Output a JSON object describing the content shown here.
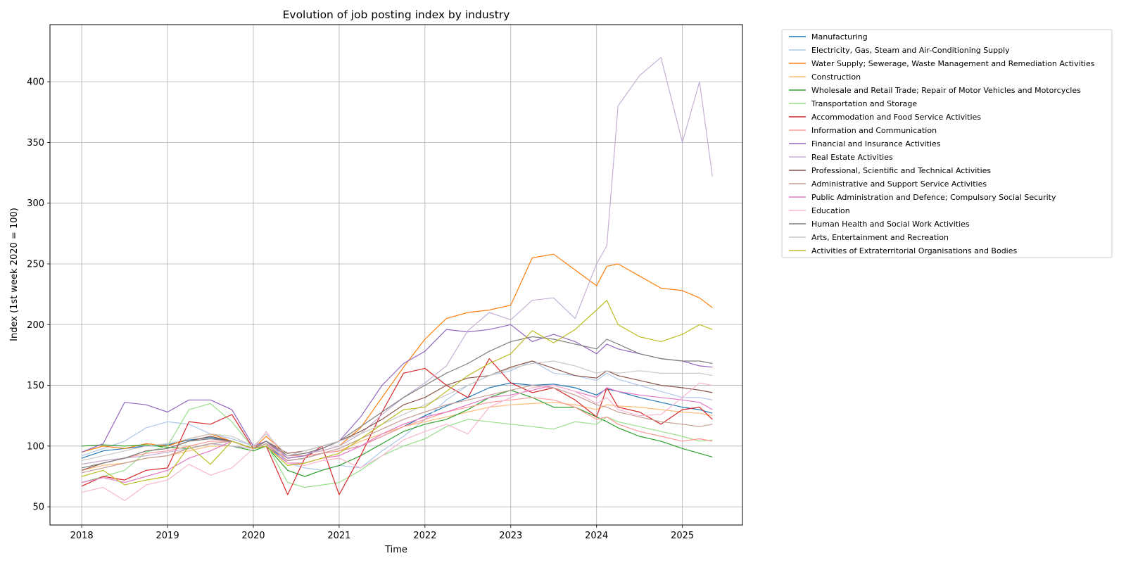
{
  "chart_data": {
    "type": "line",
    "title": "Evolution of job posting index by industry",
    "xlabel": "Time",
    "ylabel": "Index (1st week 2020 = 100)",
    "xlim": [
      2017.63,
      2025.7
    ],
    "ylim": [
      35,
      447
    ],
    "xticks": [
      2018,
      2019,
      2020,
      2021,
      2022,
      2023,
      2024,
      2025
    ],
    "yticks": [
      50,
      100,
      150,
      200,
      250,
      300,
      350,
      400
    ],
    "grid": true,
    "legend_position": "outside-right",
    "x": [
      2018.0,
      2018.25,
      2018.5,
      2018.75,
      2019.0,
      2019.25,
      2019.5,
      2019.75,
      2020.0,
      2020.15,
      2020.4,
      2020.6,
      2020.8,
      2021.0,
      2021.25,
      2021.5,
      2021.75,
      2022.0,
      2022.25,
      2022.5,
      2022.75,
      2023.0,
      2023.25,
      2023.5,
      2023.75,
      2024.0,
      2024.12,
      2024.25,
      2024.5,
      2024.75,
      2025.0,
      2025.2,
      2025.35
    ],
    "series": [
      {
        "name": "Manufacturing",
        "color": "#1f77b4",
        "values": [
          90,
          96,
          98,
          100,
          101,
          105,
          107,
          104,
          98,
          100,
          88,
          90,
          94,
          96,
          100,
          108,
          116,
          125,
          133,
          140,
          148,
          152,
          150,
          151,
          148,
          142,
          147,
          145,
          140,
          136,
          132,
          130,
          127
        ]
      },
      {
        "name": "Electricity, Gas, Steam and Air-Conditioning Supply",
        "color": "#aec7e8",
        "values": [
          92,
          98,
          104,
          115,
          120,
          118,
          110,
          106,
          100,
          104,
          86,
          82,
          80,
          84,
          82,
          96,
          108,
          122,
          138,
          150,
          158,
          162,
          170,
          160,
          158,
          154,
          160,
          155,
          150,
          145,
          140,
          140,
          138
        ]
      },
      {
        "name": "Water Supply; Sewerage, Waste Management and Remediation Activities",
        "color": "#ff7f0e",
        "values": [
          95,
          100,
          98,
          102,
          100,
          106,
          110,
          104,
          98,
          108,
          92,
          94,
          96,
          100,
          115,
          140,
          165,
          188,
          205,
          210,
          212,
          216,
          255,
          258,
          245,
          232,
          248,
          250,
          240,
          230,
          228,
          222,
          214
        ]
      },
      {
        "name": "Construction",
        "color": "#ffbb78",
        "values": [
          80,
          84,
          86,
          90,
          92,
          96,
          100,
          100,
          98,
          100,
          90,
          92,
          94,
          96,
          104,
          110,
          116,
          120,
          124,
          128,
          132,
          134,
          135,
          136,
          134,
          130,
          134,
          133,
          132,
          130,
          128,
          127,
          125
        ]
      },
      {
        "name": "Wholesale and Retail Trade; Repair of Motor Vehicles and Motorcycles",
        "color": "#2ca02c",
        "values": [
          100,
          101,
          100,
          101,
          99,
          98,
          102,
          100,
          96,
          100,
          80,
          75,
          80,
          84,
          92,
          102,
          112,
          118,
          122,
          130,
          140,
          146,
          140,
          132,
          132,
          124,
          120,
          115,
          108,
          104,
          98,
          94,
          91
        ]
      },
      {
        "name": "Transportation and Storage",
        "color": "#98df8a",
        "values": [
          70,
          75,
          80,
          95,
          100,
          130,
          135,
          120,
          98,
          102,
          70,
          66,
          68,
          70,
          80,
          92,
          100,
          106,
          116,
          122,
          120,
          118,
          116,
          114,
          120,
          118,
          124,
          120,
          116,
          112,
          108,
          104,
          105
        ]
      },
      {
        "name": "Accommodation and Food Service Activities",
        "color": "#d62728",
        "values": [
          67,
          75,
          72,
          80,
          82,
          120,
          118,
          126,
          98,
          100,
          60,
          90,
          100,
          60,
          92,
          128,
          160,
          164,
          150,
          140,
          172,
          152,
          144,
          148,
          138,
          124,
          148,
          132,
          128,
          118,
          130,
          132,
          122
        ]
      },
      {
        "name": "Information and Communication",
        "color": "#ff9896",
        "values": [
          85,
          88,
          90,
          94,
          96,
          100,
          104,
          104,
          98,
          102,
          92,
          92,
          94,
          96,
          100,
          108,
          116,
          122,
          128,
          132,
          136,
          138,
          140,
          138,
          132,
          122,
          124,
          118,
          112,
          108,
          104,
          106,
          104
        ]
      },
      {
        "name": "Financial and Insurance Activities",
        "color": "#9467bd",
        "values": [
          95,
          102,
          136,
          134,
          128,
          138,
          138,
          130,
          100,
          104,
          90,
          92,
          98,
          104,
          124,
          150,
          168,
          178,
          196,
          194,
          196,
          200,
          186,
          192,
          186,
          176,
          184,
          180,
          176,
          172,
          170,
          166,
          165
        ]
      },
      {
        "name": "Real Estate Activities",
        "color": "#c5b0d5",
        "values": [
          85,
          88,
          90,
          92,
          95,
          98,
          102,
          100,
          98,
          100,
          92,
          94,
          96,
          100,
          110,
          126,
          140,
          152,
          166,
          195,
          210,
          204,
          220,
          222,
          205,
          250,
          265,
          380,
          405,
          420,
          350,
          400,
          322
        ]
      },
      {
        "name": "Professional, Scientific and Technical Activities",
        "color": "#8c564b",
        "values": [
          80,
          86,
          90,
          96,
          98,
          104,
          108,
          104,
          98,
          104,
          94,
          96,
          100,
          104,
          112,
          122,
          134,
          140,
          150,
          156,
          158,
          165,
          170,
          164,
          158,
          156,
          162,
          158,
          154,
          150,
          148,
          146,
          144
        ]
      },
      {
        "name": "Administrative and Support Service Activities",
        "color": "#c49c94",
        "values": [
          78,
          82,
          86,
          90,
          92,
          98,
          102,
          104,
          98,
          102,
          88,
          90,
          94,
          98,
          106,
          114,
          122,
          128,
          134,
          138,
          142,
          146,
          150,
          148,
          142,
          134,
          132,
          128,
          124,
          120,
          118,
          116,
          118
        ]
      },
      {
        "name": "Public Administration and Defence; Compulsory Social Security",
        "color": "#e377c2",
        "values": [
          70,
          74,
          70,
          75,
          80,
          90,
          96,
          104,
          98,
          100,
          86,
          86,
          90,
          92,
          100,
          110,
          118,
          124,
          128,
          134,
          140,
          142,
          146,
          150,
          145,
          140,
          148,
          145,
          142,
          140,
          138,
          136,
          130
        ]
      },
      {
        "name": "Education",
        "color": "#f7b6d2",
        "values": [
          62,
          66,
          55,
          68,
          72,
          85,
          76,
          82,
          98,
          112,
          86,
          84,
          88,
          90,
          82,
          92,
          105,
          112,
          118,
          110,
          132,
          140,
          148,
          150,
          145,
          135,
          140,
          130,
          125,
          126,
          140,
          152,
          150
        ]
      },
      {
        "name": "Human Health and Social Work Activities",
        "color": "#7f7f7f",
        "values": [
          82,
          86,
          90,
          96,
          98,
          104,
          106,
          104,
          98,
          104,
          92,
          94,
          98,
          104,
          116,
          128,
          140,
          150,
          160,
          168,
          178,
          186,
          190,
          188,
          184,
          180,
          188,
          184,
          176,
          172,
          170,
          170,
          168
        ]
      },
      {
        "name": "Arts, Entertainment and Recreation",
        "color": "#c7c7c7",
        "values": [
          88,
          92,
          96,
          100,
          102,
          106,
          110,
          108,
          100,
          110,
          92,
          96,
          100,
          104,
          110,
          118,
          126,
          134,
          142,
          150,
          158,
          164,
          168,
          170,
          166,
          160,
          162,
          160,
          162,
          160,
          160,
          160,
          158
        ]
      },
      {
        "name": "Activities of Extraterritorial Organisations and Bodies",
        "color": "#bcbd22",
        "values": [
          75,
          80,
          68,
          72,
          75,
          100,
          85,
          104,
          98,
          100,
          84,
          86,
          90,
          94,
          106,
          118,
          130,
          132,
          145,
          158,
          168,
          176,
          195,
          185,
          196,
          212,
          220,
          200,
          190,
          186,
          192,
          200,
          196
        ]
      }
    ]
  }
}
